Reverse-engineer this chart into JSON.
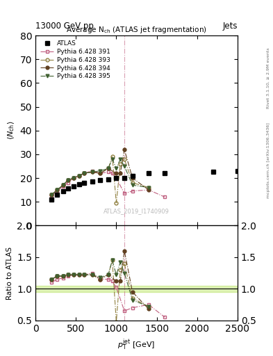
{
  "title_top": "13000 GeV pp",
  "title_right": "Jets",
  "plot_title": "Average N$_{\\rm ch}$ (ATLAS jet fragmentation)",
  "watermark": "ATLAS_2019_I1740909",
  "right_label": "mcplots.cern.ch [arXiv:1306.3436]",
  "right_label2": "Rivet 3.1.10, ≥ 2.9M events",
  "ylim_main": [
    0,
    80
  ],
  "ylim_ratio": [
    0.5,
    2.0
  ],
  "xlim": [
    0,
    2500
  ],
  "vline_x": 1100,
  "atlas_x": [
    200,
    270,
    340,
    400,
    470,
    540,
    600,
    700,
    800,
    900,
    1000,
    1100,
    1200,
    1400,
    1600,
    2200,
    2500
  ],
  "atlas_y": [
    11,
    13,
    14.5,
    15.5,
    16.5,
    17.5,
    18,
    18.5,
    19,
    19.5,
    20,
    20,
    21,
    22,
    22,
    22.5,
    23
  ],
  "py391_x": [
    200,
    270,
    340,
    400,
    470,
    540,
    600,
    700,
    800,
    900,
    950,
    1000,
    1100,
    1200,
    1400,
    1600
  ],
  "py391_y": [
    12.5,
    14.5,
    16.5,
    18,
    20,
    21,
    22,
    23,
    22,
    22.5,
    22,
    20,
    13.5,
    14.5,
    15,
    12
  ],
  "py393_x": [
    200,
    270,
    340,
    400,
    470,
    540,
    600,
    700,
    800,
    900,
    950,
    1000,
    1050,
    1100,
    1200,
    1400
  ],
  "py393_y": [
    13,
    15,
    17,
    19,
    20,
    21,
    22,
    22.5,
    22,
    24,
    29,
    9.5,
    26,
    28,
    18,
    16
  ],
  "py394_x": [
    200,
    270,
    340,
    400,
    470,
    540,
    600,
    700,
    800,
    900,
    1000,
    1050,
    1100,
    1200,
    1400
  ],
  "py394_y": [
    13,
    15,
    17,
    19,
    20,
    21,
    22,
    22.5,
    22,
    24,
    22,
    22,
    32,
    20,
    15
  ],
  "py395_x": [
    200,
    270,
    340,
    400,
    470,
    540,
    600,
    700,
    800,
    900,
    950,
    1000,
    1050,
    1100,
    1200,
    1400
  ],
  "py395_y": [
    13,
    15,
    17,
    19,
    20,
    21,
    22,
    22.5,
    23,
    24,
    28,
    24,
    28,
    25,
    17,
    16
  ],
  "ratio391_x": [
    200,
    270,
    340,
    400,
    470,
    540,
    600,
    700,
    800,
    900,
    950,
    1000,
    1100,
    1200,
    1400,
    1600
  ],
  "ratio391_y": [
    1.1,
    1.15,
    1.17,
    1.2,
    1.22,
    1.22,
    1.22,
    1.25,
    1.15,
    1.15,
    1.12,
    1.02,
    0.65,
    0.7,
    0.75,
    0.55
  ],
  "ratio393_x": [
    200,
    270,
    340,
    400,
    470,
    540,
    600,
    700,
    800,
    900,
    950,
    1000,
    1050,
    1100,
    1200,
    1400
  ],
  "ratio393_y": [
    1.15,
    1.2,
    1.2,
    1.22,
    1.22,
    1.22,
    1.22,
    1.22,
    1.15,
    1.22,
    1.45,
    0.48,
    1.3,
    1.4,
    0.85,
    0.72
  ],
  "ratio394_x": [
    200,
    270,
    340,
    400,
    470,
    540,
    600,
    700,
    800,
    900,
    1000,
    1050,
    1100,
    1200,
    1400
  ],
  "ratio394_y": [
    1.15,
    1.2,
    1.2,
    1.22,
    1.22,
    1.22,
    1.22,
    1.22,
    1.15,
    1.22,
    1.12,
    1.12,
    1.6,
    0.95,
    0.68
  ],
  "ratio395_x": [
    200,
    270,
    340,
    400,
    470,
    540,
    600,
    700,
    800,
    900,
    950,
    1000,
    1050,
    1100,
    1200,
    1400
  ],
  "ratio395_y": [
    1.15,
    1.2,
    1.2,
    1.22,
    1.22,
    1.22,
    1.22,
    1.22,
    1.18,
    1.22,
    1.45,
    1.22,
    1.42,
    1.25,
    0.82,
    0.72
  ],
  "color391": "#c06080",
  "color393": "#908040",
  "color394": "#604020",
  "color395": "#406030",
  "atlas_color": "#000000",
  "atlas_band_color": "#aadd44",
  "atlas_band_alpha": 0.4
}
